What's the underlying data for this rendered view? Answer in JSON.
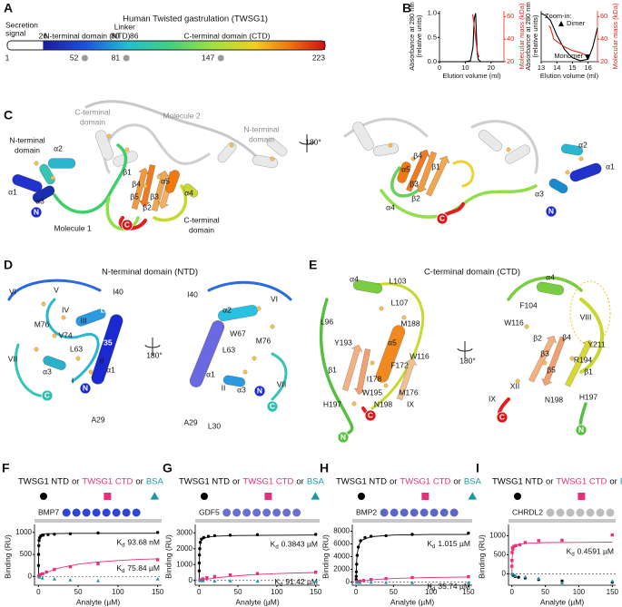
{
  "panels": {
    "A": {
      "letter": "A",
      "title": "Human Twisted gastrulation (TWSG1)",
      "signal": [
        "Secretion",
        "signal"
      ],
      "ntd": "N-terminal domain (NTD)",
      "linker": "Linker",
      "ctd": "C-terminal domain (CTD)",
      "bounds": [
        1,
        26,
        80,
        86,
        223
      ],
      "sites": [
        52,
        81,
        147
      ]
    },
    "B": {
      "letter": "B"
    },
    "C": {
      "letter": "C",
      "labels": [
        "C-terminal",
        "domain",
        "Molecule 2",
        "N-terminal",
        "domain",
        "N-terminal",
        "domain",
        "α2",
        "β1",
        "β4",
        "α5",
        "β5",
        "β3",
        "α4",
        "β2",
        "α1",
        "α3",
        "N",
        "C",
        "Molecule 1",
        "C-terminal",
        "domain",
        "180°",
        "β4",
        "α5",
        "β1",
        "β3",
        "β2",
        "α4",
        "α2",
        "α1",
        "α3",
        "N",
        "C"
      ]
    },
    "D": {
      "letter": "D",
      "title": "N-terminal domain (NTD)",
      "labels": [
        "VI",
        "V",
        "I40",
        "IV",
        "L39",
        "III",
        "M76",
        "V74",
        "V35",
        "L63",
        "VII",
        "II",
        "α1",
        "α3",
        "I",
        "N",
        "C",
        "A29",
        "180°",
        "I40",
        "α2",
        "VI",
        "W67",
        "M76",
        "L63",
        "α1",
        "II",
        "α3",
        "N",
        "VII",
        "C",
        "A29",
        "L30"
      ]
    },
    "E": {
      "letter": "E",
      "title": "C-terminal domain (CTD)",
      "labels": [
        "α4",
        "L103",
        "L107",
        "L96",
        "M188",
        "Y193",
        "α5",
        "W116",
        "F172",
        "β1",
        "I178",
        "M176",
        "W195",
        "H197",
        "N198",
        "IX",
        "C",
        "N",
        "180°",
        "α4",
        "F104",
        "W116",
        "VIII",
        "β2",
        "β4",
        "Y211",
        "β3",
        "R194",
        "β5",
        "β1",
        "XII",
        "H197",
        "IX",
        "N198",
        "C",
        "N"
      ]
    }
  },
  "chart_data": [
    {
      "type": "line",
      "xlabel": "Elution volume (ml)",
      "ylabel": [
        "Absorbance at 280 nm",
        "(relative units)"
      ],
      "y2label": "Molecular mass (kDa)",
      "xlim": [
        0,
        25
      ],
      "xticks": [
        0,
        10,
        20
      ],
      "ylim": [
        0,
        1.05
      ],
      "yticks": [
        {
          "value": 0,
          "label": "0.0"
        },
        {
          "value": 0.5,
          "label": "0.5"
        },
        {
          "value": 1,
          "label": "1.0"
        }
      ],
      "y2lim": [
        20,
        65
      ],
      "y2ticks": [
        20,
        40,
        60
      ],
      "series": [
        {
          "color": "#000000",
          "x": [
            0,
            10,
            12,
            13,
            13.5,
            14,
            14.3,
            14.6,
            15,
            16,
            25
          ],
          "values": [
            0,
            0,
            0.02,
            0.3,
            0.9,
            1.0,
            0.6,
            0.2,
            0.05,
            0,
            0
          ]
        },
        {
          "color": "#e8251c",
          "axis": "y2",
          "x": [
            12.8,
            13.3,
            13.8,
            14.3,
            14.8,
            15.3
          ],
          "values": [
            62,
            55,
            45,
            35,
            28,
            24
          ]
        }
      ]
    },
    {
      "type": "line",
      "xlabel": "Elution volume (ml)",
      "ylabel": [
        "Absorbance at 280 nm",
        "(relative units)"
      ],
      "y2label": "Molecular mass (kDa)",
      "xlim": [
        13,
        16.6
      ],
      "xticks": [
        13,
        14,
        15,
        16
      ],
      "ylim": [
        0,
        1.05
      ],
      "y2lim": [
        20,
        65
      ],
      "y2ticks": [
        20,
        40,
        60
      ],
      "annotations": [
        "Zoom-in:",
        "Dimer",
        "Monomer"
      ],
      "series": [
        {
          "color": "#000000",
          "x": [
            13,
            13.3,
            13.6,
            13.8,
            14,
            14.5,
            15,
            15.5,
            16,
            16.3,
            16.6
          ],
          "values": [
            1,
            0.95,
            0.85,
            0.7,
            0.55,
            0.25,
            0.08,
            0.02,
            0.05,
            0.3,
            0.7
          ]
        },
        {
          "color": "#e8251c",
          "axis": "y2",
          "x": [
            13.5,
            13.6,
            13.7,
            13.8,
            14,
            14.5,
            15,
            15.5,
            16
          ],
          "values": [
            52,
            50,
            45,
            40,
            38,
            33,
            30,
            28,
            25
          ]
        }
      ]
    },
    {
      "type": "scatter",
      "label": "F",
      "connector": "or",
      "chip": "BMP7",
      "chip_color": "#2f45d6",
      "xlabel": "Analyte (µM)",
      "ylabel": "Binding (RU)",
      "kd_symbol": "K",
      "kd_sub": "d",
      "xlim": [
        -5,
        155
      ],
      "xticks": [
        0,
        50,
        100,
        150
      ],
      "ylim": [
        -200,
        1100
      ],
      "yticks": [
        0,
        500,
        1000
      ],
      "series": [
        {
          "name": "TWSG1 NTD",
          "color": "#000000",
          "marker": "circle",
          "x": [
            0.1,
            0.2,
            0.4,
            0.8,
            1.5,
            3,
            6,
            12,
            20,
            40,
            75,
            150
          ],
          "values": [
            250,
            500,
            700,
            820,
            880,
            920,
            940,
            950,
            960,
            970,
            990,
            1000
          ],
          "fit_x": [
            0,
            0.5,
            1,
            2,
            4,
            8,
            20,
            50,
            100,
            150
          ],
          "fit_values": [
            0,
            830,
            900,
            940,
            960,
            970,
            975,
            980,
            980,
            982
          ],
          "kd": "93.68 nM"
        },
        {
          "name": "TWSG1 CTD",
          "color": "#e8307a",
          "marker": "square",
          "x": [
            0.5,
            1,
            2,
            5,
            10,
            20,
            40,
            75,
            150
          ],
          "values": [
            10,
            20,
            40,
            60,
            100,
            160,
            220,
            290,
            380
          ],
          "fit_x": [
            0,
            10,
            25,
            50,
            75,
            100,
            125,
            150
          ],
          "fit_values": [
            0,
            88,
            187,
            279,
            330,
            362,
            385,
            400
          ],
          "kd": "75.84 µM"
        },
        {
          "name": "BSA",
          "color": "#1a9aa0",
          "marker": "triangle",
          "x": [
            1,
            5,
            20,
            40,
            75,
            150
          ],
          "values": [
            -20,
            -40,
            -60,
            -80,
            -100,
            -60
          ]
        }
      ]
    },
    {
      "type": "scatter",
      "label": "G",
      "connector": "or",
      "chip": "GDF5",
      "chip_color": "#6a6fd0",
      "xlabel": "Analyte (µM)",
      "ylabel": "Binding (RU)",
      "kd_symbol": "K",
      "kd_sub": "d",
      "xlim": [
        -5,
        155
      ],
      "xticks": [
        0,
        50,
        100,
        150
      ],
      "ylim": [
        -300,
        3300
      ],
      "yticks": [
        0,
        1000,
        2000,
        3000
      ],
      "series": [
        {
          "name": "TWSG1 NTD",
          "color": "#000000",
          "marker": "circle",
          "x": [
            0.1,
            0.2,
            0.4,
            0.8,
            1.5,
            3,
            6,
            12,
            20,
            40,
            75,
            150
          ],
          "values": [
            600,
            1100,
            1600,
            2000,
            2400,
            2600,
            2700,
            2780,
            2820,
            2850,
            2880,
            2900
          ],
          "fit_x": [
            0,
            0.5,
            1,
            2,
            4,
            8,
            20,
            50,
            100,
            150
          ],
          "fit_values": [
            0,
            1650,
            2100,
            2400,
            2600,
            2700,
            2790,
            2830,
            2850,
            2860
          ],
          "kd": "0.3843 µM"
        },
        {
          "name": "TWSG1 CTD",
          "color": "#e8307a",
          "marker": "square",
          "x": [
            1,
            2,
            5,
            10,
            20,
            40,
            75,
            150
          ],
          "values": [
            20,
            40,
            100,
            170,
            250,
            350,
            430,
            520
          ],
          "fit_x": [
            0,
            10,
            25,
            50,
            75,
            100,
            125,
            150
          ],
          "fit_values": [
            0,
            80,
            185,
            300,
            380,
            430,
            470,
            500
          ],
          "kd": "91.42 µM"
        },
        {
          "name": "BSA",
          "color": "#1a9aa0",
          "marker": "triangle",
          "x": [
            1,
            5,
            20,
            40,
            75,
            150
          ],
          "values": [
            -20,
            -30,
            -40,
            -30,
            -50,
            -40
          ]
        }
      ]
    },
    {
      "type": "scatter",
      "label": "H",
      "connector": "or",
      "chip": "BMP2",
      "chip_color": "#5b68c8",
      "xlabel": "Analyte (µM)",
      "ylabel": "Binding (RU)",
      "kd_symbol": "K",
      "kd_sub": "d",
      "xlim": [
        -5,
        155
      ],
      "xticks": [
        0,
        50,
        100,
        150
      ],
      "ylim": [
        -500,
        8500
      ],
      "yticks": [
        0,
        2000,
        4000,
        6000,
        8000
      ],
      "series": [
        {
          "name": "TWSG1 NTD",
          "color": "#000000",
          "marker": "circle",
          "x": [
            0.1,
            0.2,
            0.4,
            0.8,
            1.5,
            3,
            6,
            12,
            20,
            40,
            75,
            150
          ],
          "values": [
            400,
            900,
            1600,
            2800,
            4200,
            5500,
            6500,
            7000,
            7200,
            7300,
            7500,
            7700
          ],
          "fit_x": [
            0,
            0.5,
            1,
            2,
            4,
            8,
            20,
            50,
            100,
            150
          ],
          "fit_values": [
            0,
            2500,
            3600,
            4800,
            5900,
            6600,
            7150,
            7400,
            7480,
            7500
          ],
          "kd": "1.015 µM"
        },
        {
          "name": "TWSG1 CTD",
          "color": "#e8307a",
          "marker": "square",
          "x": [
            1,
            2,
            5,
            10,
            20,
            40,
            75,
            150
          ],
          "values": [
            30,
            60,
            150,
            250,
            400,
            550,
            700,
            850
          ],
          "fit_x": [
            0,
            10,
            25,
            50,
            75,
            100,
            125,
            150
          ],
          "fit_values": [
            0,
            200,
            400,
            560,
            660,
            720,
            760,
            790
          ],
          "kd": "35.74 µM"
        },
        {
          "name": "BSA",
          "color": "#1a9aa0",
          "marker": "triangle",
          "x": [
            1,
            5,
            20,
            40,
            75,
            150
          ],
          "values": [
            -60,
            -80,
            -50,
            -70,
            -100,
            -80
          ]
        }
      ]
    },
    {
      "type": "scatter",
      "label": "I",
      "connector": "or",
      "chip": "CHRDL2",
      "chip_color": "#bdbdbd",
      "xlabel": "Analyte (µM)",
      "ylabel": "Binding (RU)",
      "kd_symbol": "K",
      "kd_sub": "d",
      "xlim": [
        -5,
        155
      ],
      "xticks": [
        0,
        50,
        100,
        150
      ],
      "ylim": [
        -300,
        1200
      ],
      "yticks": [
        0,
        500,
        1000
      ],
      "series": [
        {
          "name": "TWSG1 NTD",
          "color": "#000000",
          "marker": "circle",
          "x": [
            1,
            2,
            5,
            10,
            20,
            40,
            75,
            150
          ],
          "values": [
            -20,
            -40,
            -70,
            -90,
            -110,
            -150,
            -190,
            -220
          ]
        },
        {
          "name": "TWSG1 CTD",
          "color": "#e8307a",
          "marker": "square",
          "x": [
            0.1,
            0.2,
            0.4,
            0.8,
            1.5,
            3,
            6,
            12,
            20,
            40,
            75,
            150
          ],
          "values": [
            200,
            350,
            560,
            680,
            650,
            720,
            740,
            760,
            820,
            870,
            880,
            1020
          ],
          "fit_x": [
            0,
            0.5,
            1,
            2,
            4,
            8,
            20,
            50,
            100,
            150
          ],
          "fit_values": [
            0,
            400,
            550,
            650,
            720,
            760,
            800,
            820,
            825,
            830
          ],
          "kd": "0.4591 µM"
        },
        {
          "name": "BSA",
          "color": "#1a9aa0",
          "marker": "triangle",
          "x": [
            1,
            5,
            20,
            40,
            75,
            150
          ],
          "values": [
            -10,
            -50,
            -80,
            -120,
            -240,
            -190
          ]
        }
      ]
    }
  ]
}
